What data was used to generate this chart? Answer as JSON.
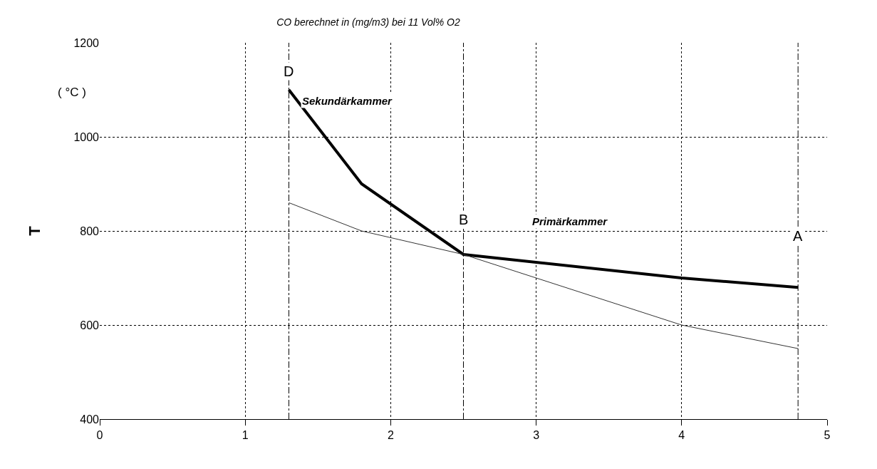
{
  "chart_data": {
    "type": "line",
    "title": "CO berechnet in (mg/m3) bei 11 Vol% O2",
    "ylabel": "T",
    "x": [
      1.3,
      1.8,
      2.5,
      4,
      4.8
    ],
    "series": [
      {
        "color": "#000000",
        "values": [
          1100,
          900,
          750,
          700,
          680
        ]
      },
      {
        "color": "#333333",
        "x": [
          1.3,
          1.8,
          2.5,
          3,
          4,
          4.8
        ],
        "values": [
          860,
          800,
          750,
          700,
          600,
          550
        ]
      }
    ],
    "xlim": [
      0,
      5
    ],
    "xticks": [
      0,
      1,
      2,
      3,
      4,
      5
    ],
    "ylim": [
      400,
      1200
    ],
    "yticks": [
      400,
      600,
      800,
      1000,
      1200
    ],
    "grid": true,
    "line_style": "solid",
    "marker": "none",
    "ref_lines": [
      {
        "axis": "x",
        "value": 1.3,
        "line_style": "dashed"
      },
      {
        "axis": "x",
        "value": 2.5,
        "line_style": "dashed"
      },
      {
        "axis": "x",
        "value": 4.8,
        "line_style": "dashed"
      }
    ],
    "annotations": [
      {
        "text": "D",
        "x": 1.3,
        "y": 1140
      },
      {
        "text": "B",
        "x": 2.5,
        "y": 825
      },
      {
        "text": "A",
        "x": 4.8,
        "y": 790
      },
      "Sekundärkammer",
      "Primärkammer",
      "( °C )"
    ]
  }
}
